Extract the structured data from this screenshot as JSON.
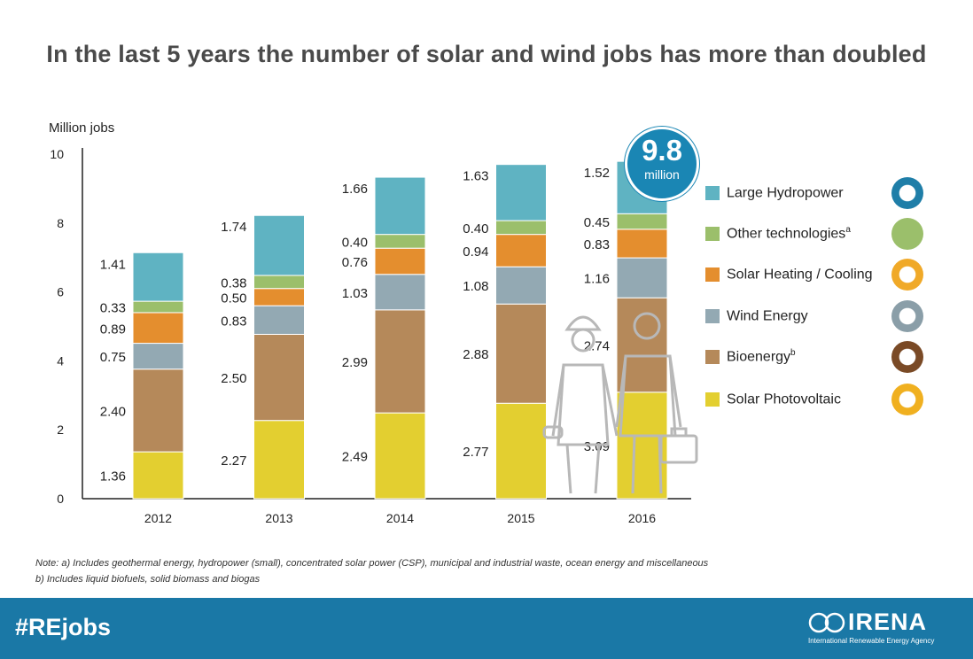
{
  "title": "In the last 5 years the number of solar and wind jobs has more than doubled",
  "chart_data": {
    "type": "bar",
    "stacked": true,
    "title": "In the last 5 years the number of solar and wind jobs has more than doubled",
    "ylabel": "Million jobs",
    "xlabel": "",
    "ylim": [
      0,
      10
    ],
    "yticks": [
      "0",
      "2",
      "4",
      "6",
      "8",
      "10"
    ],
    "categories": [
      "2012",
      "2013",
      "2014",
      "2015",
      "2016"
    ],
    "series": [
      {
        "name": "Solar Photovoltaic",
        "color": "#e3cf30",
        "values": [
          1.36,
          2.27,
          2.49,
          2.77,
          3.09
        ],
        "labels": [
          "1.36",
          "2.27",
          "2.49",
          "2.77",
          "3.09"
        ]
      },
      {
        "name": "Bioenergy",
        "color": "#b5895a",
        "values": [
          2.4,
          2.5,
          2.99,
          2.88,
          2.74
        ],
        "labels": [
          "2.40",
          "2.50",
          "2.99",
          "2.88",
          "2.74"
        ]
      },
      {
        "name": "Wind Energy",
        "color": "#93a9b3",
        "values": [
          0.75,
          0.83,
          1.03,
          1.08,
          1.16
        ],
        "labels": [
          "0.75",
          "0.83",
          "1.03",
          "1.08",
          "1.16"
        ]
      },
      {
        "name": "Solar Heating / Cooling",
        "color": "#e48e2e",
        "values": [
          0.89,
          0.5,
          0.76,
          0.94,
          0.83
        ],
        "labels": [
          "0.89",
          "0.50",
          "0.76",
          "0.94",
          "0.83"
        ]
      },
      {
        "name": "Other technologies",
        "color": "#9bbf6b",
        "values": [
          0.33,
          0.38,
          0.4,
          0.4,
          0.45
        ],
        "labels": [
          "0.33",
          "0.38",
          "0.40",
          "0.40",
          "0.45"
        ]
      },
      {
        "name": "Large Hydropower",
        "color": "#5fb3c2",
        "values": [
          1.41,
          1.74,
          1.66,
          1.63,
          1.52
        ],
        "labels": [
          "1.41",
          "1.74",
          "1.66",
          "1.63",
          "1.52"
        ]
      }
    ]
  },
  "badge": {
    "value": "9.8",
    "unit": "million"
  },
  "legend": [
    {
      "label": "Large Hydropower",
      "sup": "",
      "color": "#5fb3c2",
      "icon": "water-drop-icon",
      "icon_color": "#1f7ea8"
    },
    {
      "label": "Other technologies",
      "sup": "a",
      "color": "#9bbf6b",
      "icon": "green-circle-icon",
      "icon_color": "#9bbf6b"
    },
    {
      "label": "Solar Heating / Cooling",
      "sup": "",
      "color": "#e48e2e",
      "icon": "sun-icon",
      "icon_color": "#f0a928"
    },
    {
      "label": "Wind Energy",
      "sup": "",
      "color": "#93a9b3",
      "icon": "wind-icon",
      "icon_color": "#8a9ea8"
    },
    {
      "label": "Bioenergy",
      "sup": "b",
      "color": "#b5895a",
      "icon": "leaf-icon",
      "icon_color": "#7a4a26"
    },
    {
      "label": "Solar Photovoltaic",
      "sup": "",
      "color": "#e3cf30",
      "icon": "sun-icon",
      "icon_color": "#f0b020"
    }
  ],
  "notes": {
    "line1": "Note: a) Includes geothermal energy, hydropower (small), concentrated solar power (CSP), municipal and industrial waste, ocean energy and miscellaneous",
    "line2": "b) Includes liquid biofuels, solid biomass and biogas"
  },
  "footer": {
    "hashtag": "#REjobs",
    "logo_name": "IRENA",
    "logo_sub": "International Renewable Energy Agency",
    "color": "#1a78a6"
  }
}
